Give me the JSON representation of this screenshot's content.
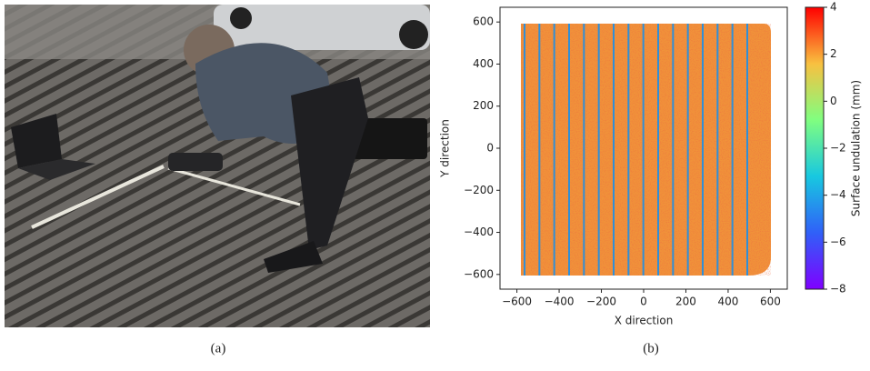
{
  "captions": [
    "(a)",
    "(b)"
  ],
  "chart_data": {
    "type": "heatmap",
    "xlabel": "X direction",
    "ylabel": "Y direction",
    "xlim": [
      -680,
      680
    ],
    "ylim": [
      -670,
      670
    ],
    "xticks": [
      {
        "value": -600,
        "label": "−600"
      },
      {
        "value": -400,
        "label": "−400"
      },
      {
        "value": -200,
        "label": "−200"
      },
      0,
      200,
      400,
      600
    ],
    "yticks": [
      {
        "value": -600,
        "label": "−600"
      },
      {
        "value": -400,
        "label": "−400"
      },
      {
        "value": -200,
        "label": "−200"
      },
      0,
      200,
      400,
      600
    ],
    "colorbar_label": "Surface undulation (mm)",
    "clim": [
      -8,
      4
    ],
    "cticks": [
      {
        "value": -8,
        "label": "−8"
      },
      {
        "value": -6,
        "label": "−6"
      },
      {
        "value": -4,
        "label": "−4"
      },
      {
        "value": -2,
        "label": "−2"
      },
      0,
      2,
      4
    ]
  }
}
